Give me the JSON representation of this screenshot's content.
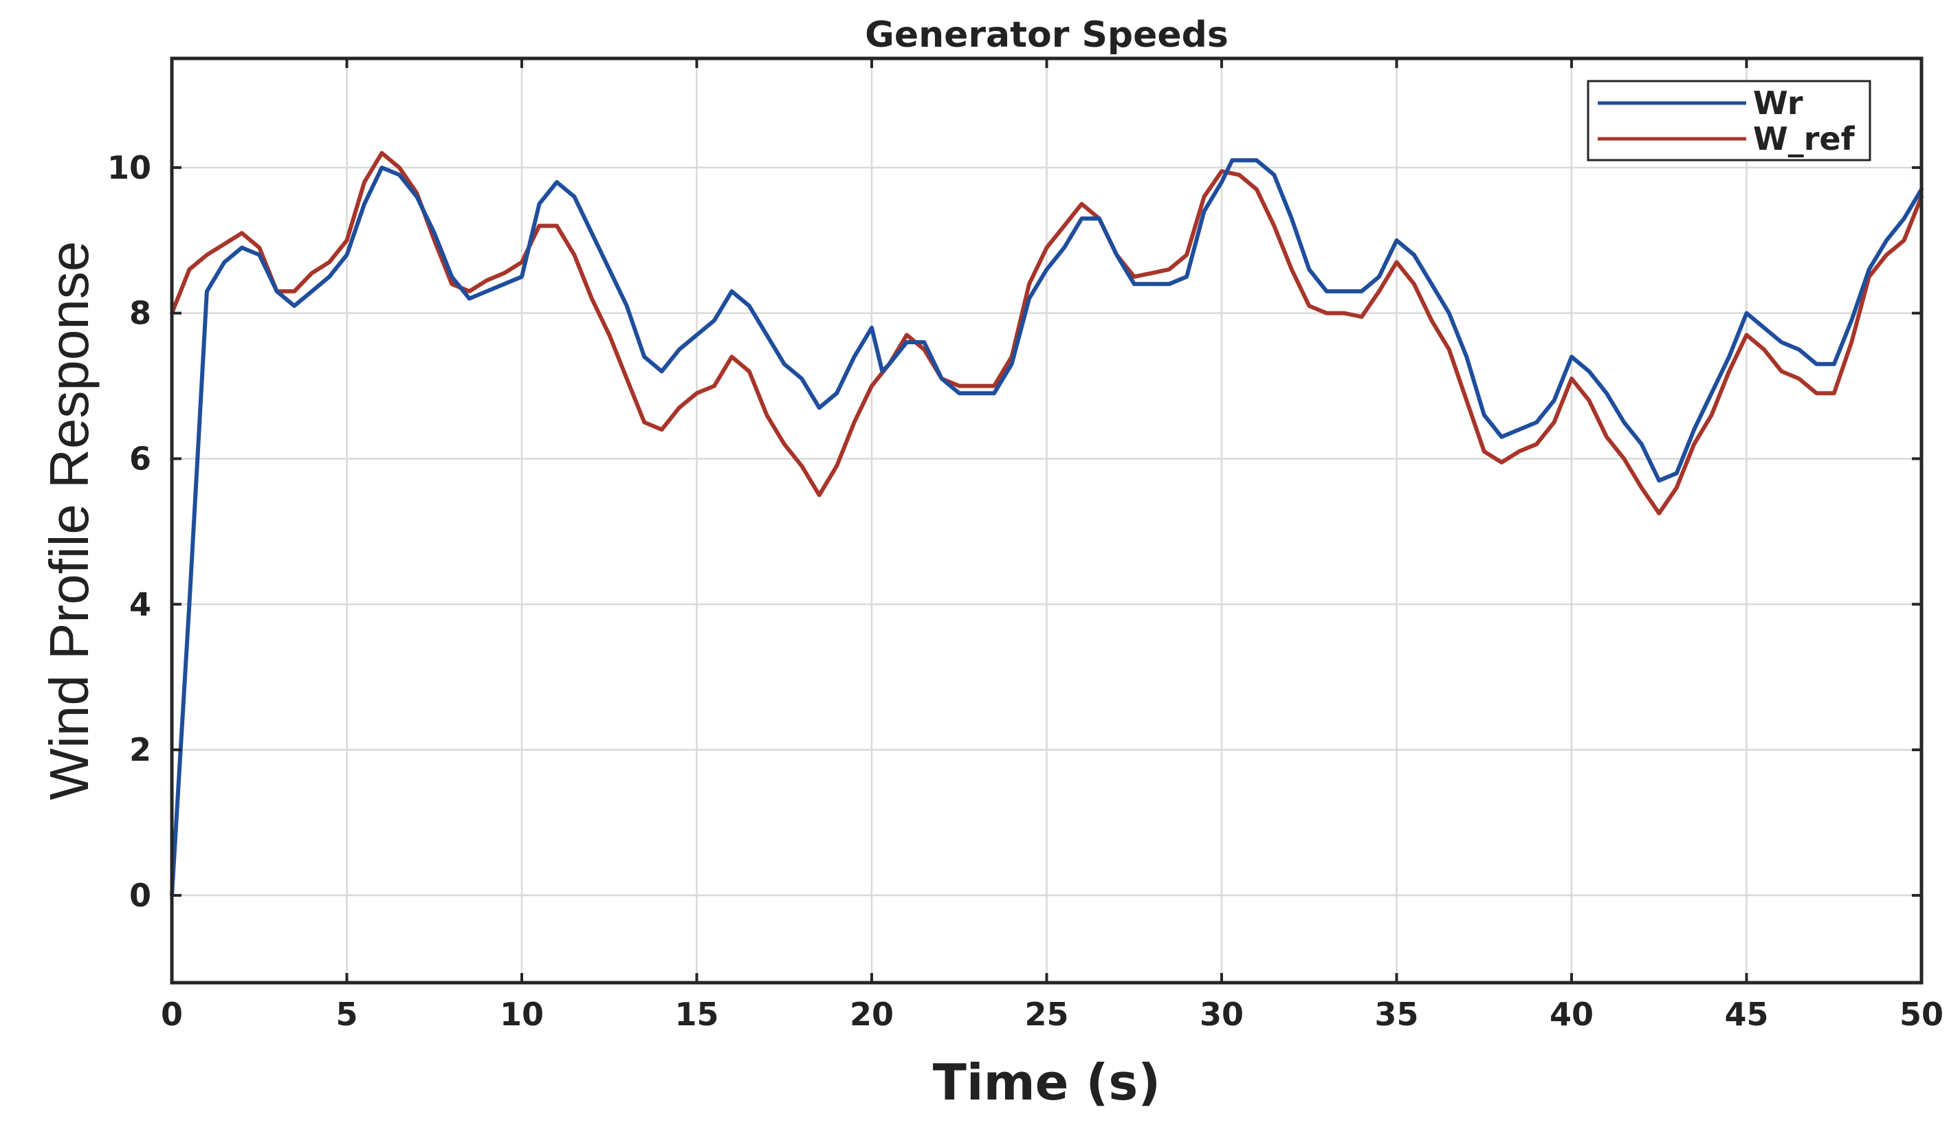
{
  "chart_data": {
    "type": "line",
    "title": "Generator Speeds",
    "xlabel": "Time (s)",
    "ylabel": "Wind Profile Response",
    "xlim": [
      0,
      50
    ],
    "ylim": [
      -1.2,
      11.5
    ],
    "xticks": [
      0,
      5,
      10,
      15,
      20,
      25,
      30,
      35,
      40,
      45,
      50
    ],
    "xtick_labels": [
      "0",
      "5",
      "10",
      "15",
      "20",
      "25",
      "30",
      "35",
      "40",
      "45",
      "50"
    ],
    "yticks": [
      0,
      2,
      4,
      6,
      8,
      10
    ],
    "ytick_labels": [
      "0",
      "2",
      "4",
      "6",
      "8",
      "10"
    ],
    "grid": true,
    "legend_position": "top-right",
    "series": [
      {
        "name": "Wr",
        "color": "#1f4e9c",
        "points": [
          [
            0,
            0
          ],
          [
            0.5,
            4
          ],
          [
            1,
            8.3
          ],
          [
            1.5,
            8.7
          ],
          [
            2,
            8.9
          ],
          [
            2.5,
            8.8
          ],
          [
            3,
            8.3
          ],
          [
            3.5,
            8.1
          ],
          [
            4,
            8.3
          ],
          [
            4.5,
            8.5
          ],
          [
            5,
            8.8
          ],
          [
            5.5,
            9.5
          ],
          [
            6,
            10
          ],
          [
            6.5,
            9.9
          ],
          [
            7,
            9.6
          ],
          [
            7.5,
            9.1
          ],
          [
            8,
            8.5
          ],
          [
            8.5,
            8.2
          ],
          [
            9,
            8.3
          ],
          [
            9.5,
            8.4
          ],
          [
            10,
            8.5
          ],
          [
            10.5,
            9.5
          ],
          [
            11,
            9.8
          ],
          [
            11.5,
            9.6
          ],
          [
            12,
            9.1
          ],
          [
            12.5,
            8.6
          ],
          [
            13,
            8.1
          ],
          [
            13.5,
            7.4
          ],
          [
            14,
            7.2
          ],
          [
            14.5,
            7.5
          ],
          [
            15,
            7.7
          ],
          [
            15.5,
            7.9
          ],
          [
            16,
            8.3
          ],
          [
            16.5,
            8.1
          ],
          [
            17,
            7.7
          ],
          [
            17.5,
            7.3
          ],
          [
            18,
            7.1
          ],
          [
            18.5,
            6.7
          ],
          [
            19,
            6.9
          ],
          [
            19.5,
            7.4
          ],
          [
            20,
            7.8
          ],
          [
            20.3,
            7.2
          ],
          [
            20.5,
            7.3
          ],
          [
            21,
            7.6
          ],
          [
            21.5,
            7.6
          ],
          [
            22,
            7.1
          ],
          [
            22.5,
            6.9
          ],
          [
            23,
            6.9
          ],
          [
            23.5,
            6.9
          ],
          [
            24,
            7.3
          ],
          [
            24.5,
            8.2
          ],
          [
            25,
            8.6
          ],
          [
            25.5,
            8.9
          ],
          [
            26,
            9.3
          ],
          [
            26.5,
            9.3
          ],
          [
            27,
            8.8
          ],
          [
            27.5,
            8.4
          ],
          [
            28,
            8.4
          ],
          [
            28.5,
            8.4
          ],
          [
            29,
            8.5
          ],
          [
            29.5,
            9.4
          ],
          [
            30,
            9.8
          ],
          [
            30.3,
            10.1
          ],
          [
            31,
            10.1
          ],
          [
            31.5,
            9.9
          ],
          [
            32,
            9.3
          ],
          [
            32.5,
            8.6
          ],
          [
            33,
            8.3
          ],
          [
            33.5,
            8.3
          ],
          [
            34,
            8.3
          ],
          [
            34.5,
            8.5
          ],
          [
            35,
            9
          ],
          [
            35.5,
            8.8
          ],
          [
            36,
            8.4
          ],
          [
            36.5,
            8
          ],
          [
            37,
            7.4
          ],
          [
            37.5,
            6.6
          ],
          [
            38,
            6.3
          ],
          [
            38.5,
            6.4
          ],
          [
            39,
            6.5
          ],
          [
            39.5,
            6.8
          ],
          [
            40,
            7.4
          ],
          [
            40.5,
            7.2
          ],
          [
            41,
            6.9
          ],
          [
            41.5,
            6.5
          ],
          [
            42,
            6.2
          ],
          [
            42.5,
            5.7
          ],
          [
            43,
            5.8
          ],
          [
            43.5,
            6.4
          ],
          [
            44,
            6.9
          ],
          [
            44.5,
            7.4
          ],
          [
            45,
            8
          ],
          [
            45.5,
            7.8
          ],
          [
            46,
            7.6
          ],
          [
            46.5,
            7.5
          ],
          [
            47,
            7.3
          ],
          [
            47.5,
            7.3
          ],
          [
            48,
            7.9
          ],
          [
            48.5,
            8.6
          ],
          [
            49,
            9
          ],
          [
            49.5,
            9.3
          ],
          [
            50,
            9.7
          ]
        ]
      },
      {
        "name": "W_ref",
        "color": "#a8352a",
        "points": [
          [
            0,
            8
          ],
          [
            0.5,
            8.6
          ],
          [
            1,
            8.8
          ],
          [
            1.5,
            8.95
          ],
          [
            2,
            9.1
          ],
          [
            2.5,
            8.9
          ],
          [
            3,
            8.3
          ],
          [
            3.5,
            8.3
          ],
          [
            4,
            8.55
          ],
          [
            4.5,
            8.7
          ],
          [
            5,
            9
          ],
          [
            5.5,
            9.8
          ],
          [
            6,
            10.2
          ],
          [
            6.5,
            10
          ],
          [
            7,
            9.65
          ],
          [
            7.5,
            9
          ],
          [
            8,
            8.4
          ],
          [
            8.5,
            8.3
          ],
          [
            9,
            8.45
          ],
          [
            9.5,
            8.55
          ],
          [
            10,
            8.7
          ],
          [
            10.5,
            9.2
          ],
          [
            11,
            9.2
          ],
          [
            11.5,
            8.8
          ],
          [
            12,
            8.2
          ],
          [
            12.5,
            7.7
          ],
          [
            13,
            7.1
          ],
          [
            13.5,
            6.5
          ],
          [
            14,
            6.4
          ],
          [
            14.5,
            6.7
          ],
          [
            15,
            6.9
          ],
          [
            15.5,
            7
          ],
          [
            16,
            7.4
          ],
          [
            16.5,
            7.2
          ],
          [
            17,
            6.6
          ],
          [
            17.5,
            6.2
          ],
          [
            18,
            5.9
          ],
          [
            18.5,
            5.5
          ],
          [
            19,
            5.9
          ],
          [
            19.5,
            6.5
          ],
          [
            20,
            7
          ],
          [
            20.5,
            7.3
          ],
          [
            21,
            7.7
          ],
          [
            21.5,
            7.5
          ],
          [
            22,
            7.1
          ],
          [
            22.5,
            7
          ],
          [
            23,
            7
          ],
          [
            23.5,
            7
          ],
          [
            24,
            7.4
          ],
          [
            24.5,
            8.4
          ],
          [
            25,
            8.9
          ],
          [
            25.5,
            9.2
          ],
          [
            26,
            9.5
          ],
          [
            26.5,
            9.3
          ],
          [
            27,
            8.8
          ],
          [
            27.5,
            8.5
          ],
          [
            28,
            8.55
          ],
          [
            28.5,
            8.6
          ],
          [
            29,
            8.8
          ],
          [
            29.5,
            9.6
          ],
          [
            30,
            9.95
          ],
          [
            30.5,
            9.9
          ],
          [
            31,
            9.7
          ],
          [
            31.5,
            9.2
          ],
          [
            32,
            8.6
          ],
          [
            32.5,
            8.1
          ],
          [
            33,
            8
          ],
          [
            33.5,
            8
          ],
          [
            34,
            7.95
          ],
          [
            34.5,
            8.3
          ],
          [
            35,
            8.7
          ],
          [
            35.5,
            8.4
          ],
          [
            36,
            7.9
          ],
          [
            36.5,
            7.5
          ],
          [
            37,
            6.8
          ],
          [
            37.5,
            6.1
          ],
          [
            38,
            5.95
          ],
          [
            38.5,
            6.1
          ],
          [
            39,
            6.2
          ],
          [
            39.5,
            6.5
          ],
          [
            40,
            7.1
          ],
          [
            40.5,
            6.8
          ],
          [
            41,
            6.3
          ],
          [
            41.5,
            6
          ],
          [
            42,
            5.6
          ],
          [
            42.5,
            5.25
          ],
          [
            43,
            5.6
          ],
          [
            43.5,
            6.2
          ],
          [
            44,
            6.6
          ],
          [
            44.5,
            7.2
          ],
          [
            45,
            7.7
          ],
          [
            45.5,
            7.5
          ],
          [
            46,
            7.2
          ],
          [
            46.5,
            7.1
          ],
          [
            47,
            6.9
          ],
          [
            47.5,
            6.9
          ],
          [
            48,
            7.6
          ],
          [
            48.5,
            8.5
          ],
          [
            49,
            8.8
          ],
          [
            49.5,
            9
          ],
          [
            50,
            9.6
          ]
        ]
      }
    ]
  }
}
